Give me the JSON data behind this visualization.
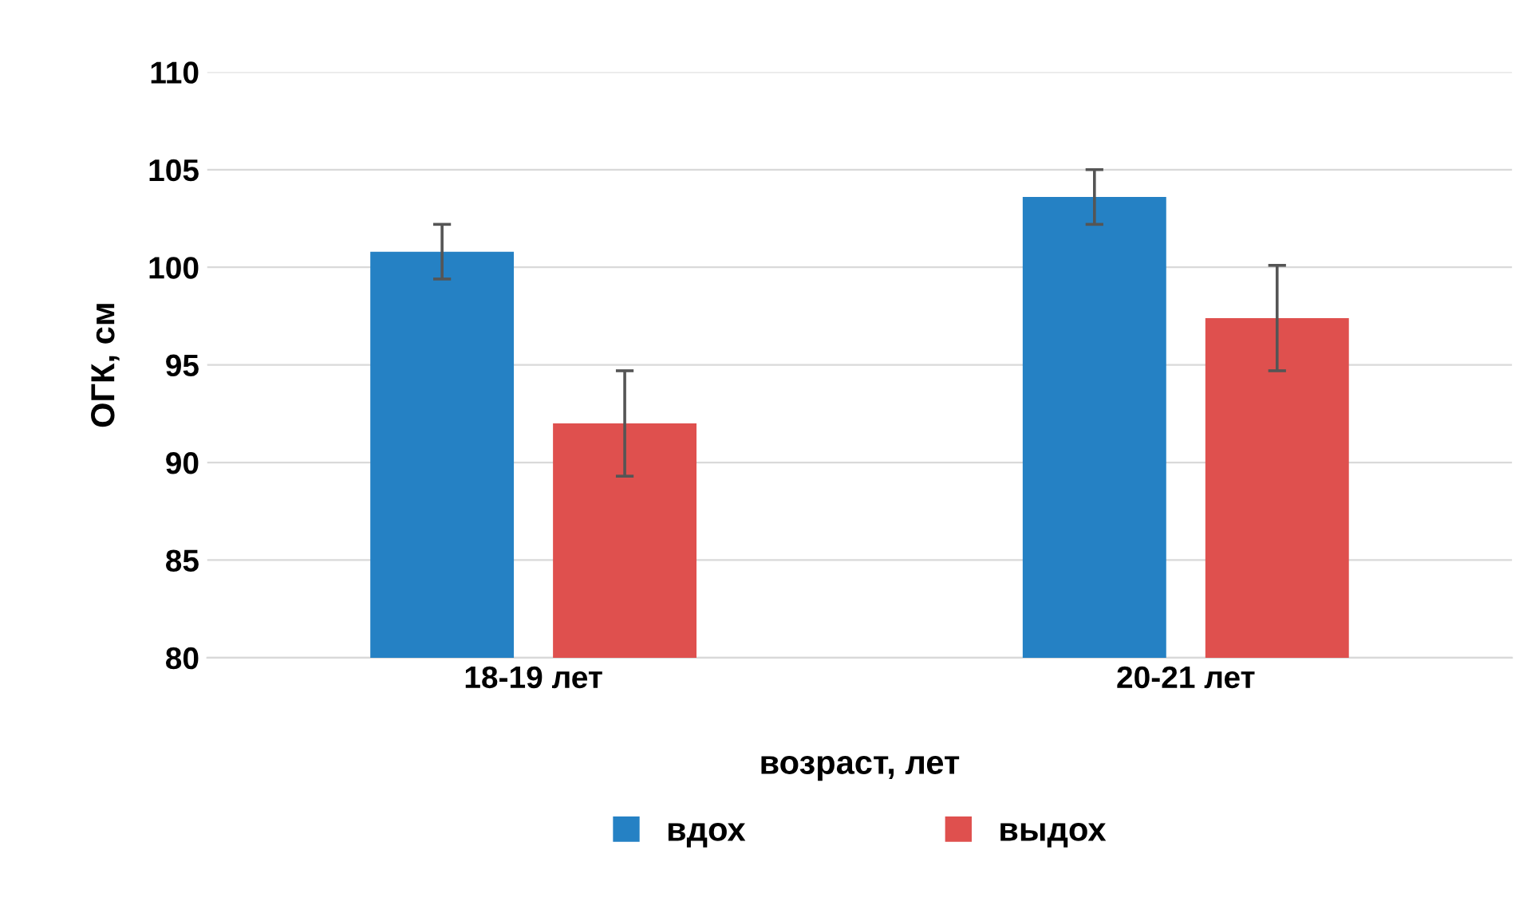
{
  "chart_data": {
    "type": "bar",
    "xlabel": "возраст, лет",
    "ylabel": "ОГК, см",
    "categories": [
      "18-19 лет",
      "20-21 лет"
    ],
    "series": [
      {
        "name": "вдох",
        "color": "#2581c4",
        "values": [
          100.8,
          103.6
        ],
        "errors": [
          1.4,
          1.4
        ]
      },
      {
        "name": "выдох",
        "color": "#df504e",
        "values": [
          92.0,
          97.4
        ],
        "errors": [
          2.7,
          2.7
        ]
      }
    ],
    "ylim": [
      80,
      110
    ],
    "yticks": [
      80,
      85,
      90,
      95,
      100,
      105,
      110
    ],
    "grid": "y",
    "legend": "bottom"
  }
}
